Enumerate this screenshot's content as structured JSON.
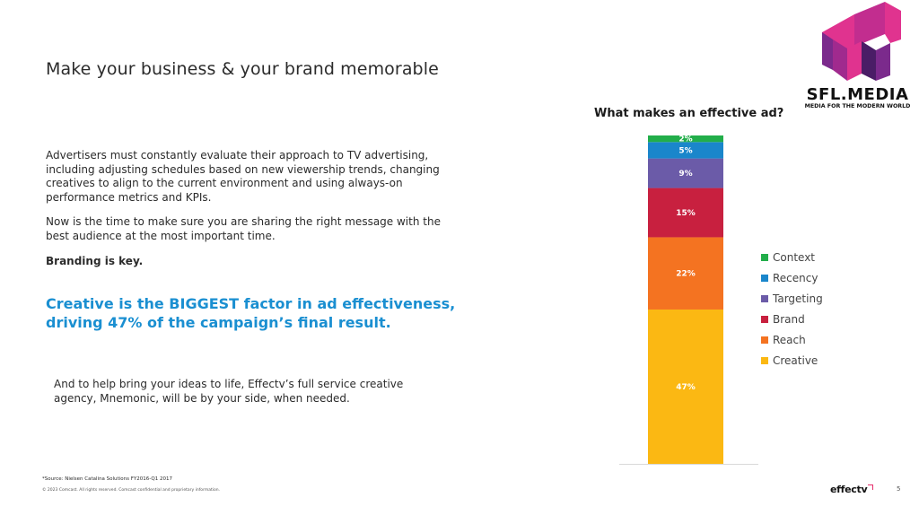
{
  "slide": {
    "title": "Make your business & your brand memorable",
    "paragraph1": "Advertisers must constantly evaluate their approach to TV advertising, including adjusting schedules based on new viewership trends, changing creatives to align to the current environment and using always-on performance metrics and KPIs.",
    "paragraph2": "Now is the time to make sure you are sharing the right message with the best audience at the most important time.",
    "paragraph3": "Branding is key.",
    "highlight": "Creative is the BIGGEST factor in ad effectiveness, driving 47% of the campaign’s final result.",
    "paragraph4": "And to help bring your ideas to life, Effectv’s full service creative agency, Mnemonic, will be by your side, when needed.",
    "footnote": "*Source: Nielsen Catalina Solutions FY2016-Q1 2017",
    "copyright": "© 2023 Comcast. All rights reserved. Comcast confidential and proprietary information.",
    "page_number": "5",
    "brand_footer": "effectv"
  },
  "logo": {
    "name": "SFL.MEDIA",
    "tagline": "MEDIA FOR THE MODERN WORLD",
    "colors": {
      "pink": "#e0338f",
      "purple": "#7b2a8c",
      "dark": "#4a1d66"
    }
  },
  "chart_data": {
    "type": "bar",
    "stacked": true,
    "title": "What makes an effective ad?",
    "categories": [
      ""
    ],
    "series": [
      {
        "name": "Creative",
        "values": [
          47
        ],
        "label": "47%",
        "color": "#fbb813"
      },
      {
        "name": "Reach",
        "values": [
          22
        ],
        "label": "22%",
        "color": "#f47321"
      },
      {
        "name": "Brand",
        "values": [
          15
        ],
        "label": "15%",
        "color": "#c8203f"
      },
      {
        "name": "Targeting",
        "values": [
          9
        ],
        "label": "9%",
        "color": "#6b5ba8"
      },
      {
        "name": "Recency",
        "values": [
          5
        ],
        "label": "5%",
        "color": "#1a86cb"
      },
      {
        "name": "Context",
        "values": [
          2
        ],
        "label": "2%",
        "color": "#22ae4a"
      }
    ],
    "legend_order": [
      "Context",
      "Recency",
      "Targeting",
      "Brand",
      "Reach",
      "Creative"
    ],
    "legend_position": "right",
    "ylim": [
      0,
      100
    ],
    "grid": false
  }
}
